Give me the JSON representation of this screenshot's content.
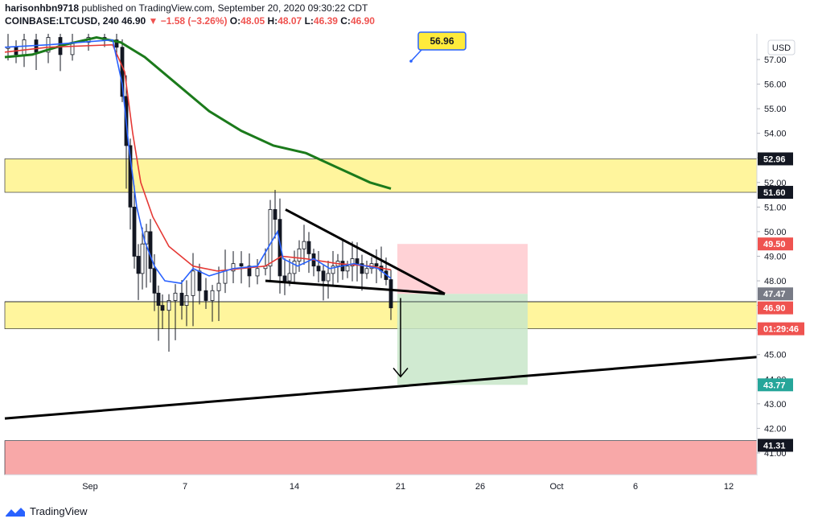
{
  "header": {
    "line1_user": "harisonhbn9718",
    "line1_rest": " published on TradingView.com, September 20, 2020 09:30:22 CDT",
    "symbol": "COINBASE:LTCUSD, 240",
    "last": "46.90",
    "change": "▼ −1.58 (−3.26%)",
    "open_label": "O:",
    "open": "48.05",
    "high_label": "H:",
    "high": "48.07",
    "low_label": "L:",
    "low": "46.39",
    "close_label": "C:",
    "close": "46.90"
  },
  "footer": {
    "brand": "TradingView"
  },
  "currency_button": "USD",
  "colors": {
    "down": "#ef5350",
    "up": "#26a69a",
    "candle": "#131722",
    "ema_fast": "#2962ff",
    "ema_slow": "#e53935",
    "ma_long": "#1b7a1b",
    "support_zone": "#fff59d",
    "resistance_zone": "#f8a8a8",
    "stop_box": "#ffcdd2",
    "target_box": "#c8e6c9"
  },
  "chart_data": {
    "type": "candlestick",
    "title": "",
    "ylim": [
      40.1,
      58.0
    ],
    "y_ticks": [
      "57.00",
      "56.00",
      "55.00",
      "54.00",
      "53.00",
      "52.00",
      "51.00",
      "50.00",
      "49.00",
      "48.00",
      "47.00",
      "46.00",
      "45.00",
      "44.00",
      "43.00",
      "42.00",
      "41.00"
    ],
    "x_ticks": [
      "Sep",
      "7",
      "14",
      "21",
      "26",
      "Oct",
      "6",
      "12"
    ],
    "price_tags": [
      {
        "name": "52.96",
        "value": 52.96,
        "bg": "#131722",
        "fg": "#ffffff"
      },
      {
        "name": "51.60",
        "value": 51.6,
        "bg": "#131722",
        "fg": "#ffffff"
      },
      {
        "name": "49.50",
        "value": 49.5,
        "bg": "#ef5350",
        "fg": "#ffffff"
      },
      {
        "name": "47.47",
        "value": 47.47,
        "bg": "#787b86",
        "fg": "#ffffff"
      },
      {
        "name": "46.90",
        "value": 46.9,
        "bg": "#ef5350",
        "fg": "#ffffff"
      },
      {
        "name": "01:29:46",
        "value": 46.05,
        "bg": "#ef5350",
        "fg": "#ffffff"
      },
      {
        "name": "43.77",
        "value": 43.77,
        "bg": "#26a69a",
        "fg": "#ffffff"
      },
      {
        "name": "41.31",
        "value": 41.31,
        "bg": "#131722",
        "fg": "#ffffff"
      }
    ],
    "zones": [
      {
        "name": "resistance-zone",
        "from": 51.6,
        "to": 52.96
      },
      {
        "name": "support-zone",
        "from": 46.05,
        "to": 47.15
      },
      {
        "name": "demand-zone",
        "from": 39.8,
        "to": 41.5
      }
    ],
    "callout": {
      "label": "56.96",
      "value": 56.96
    },
    "position": {
      "entry": 47.47,
      "stop": 49.5,
      "target": 43.77
    },
    "triangle": {
      "upper_start": 50.9,
      "lower": 47.47
    },
    "trendline": {
      "start": 42.4,
      "end": 44.9
    }
  }
}
